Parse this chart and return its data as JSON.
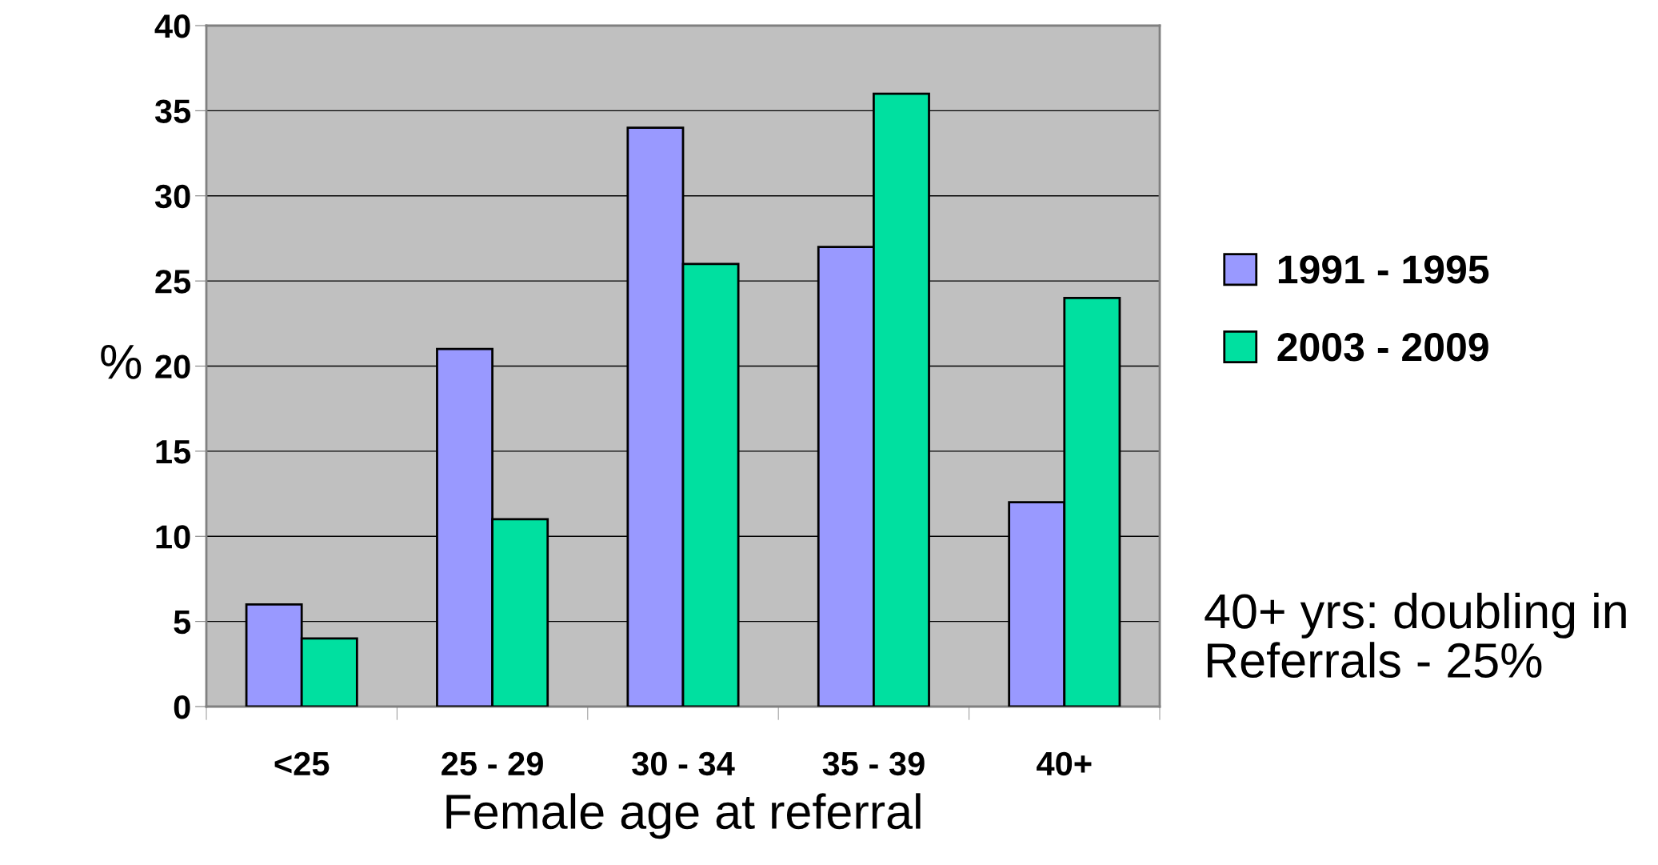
{
  "chart_data": {
    "type": "bar",
    "xlabel": "Female age at referral",
    "ylabel": "%",
    "categories": [
      "<25",
      "25 - 29",
      "30 - 34",
      "35 - 39",
      "40+"
    ],
    "series": [
      {
        "name": "1991 - 1995",
        "color": "#9999ff",
        "values": [
          6,
          21,
          34,
          27,
          12
        ]
      },
      {
        "name": "2003 - 2009",
        "color": "#00e0a0",
        "values": [
          4,
          11,
          26,
          36,
          24
        ]
      }
    ],
    "ylim": [
      0,
      40
    ],
    "yticks": [
      0,
      5,
      10,
      15,
      20,
      25,
      30,
      35,
      40
    ],
    "grid": "y",
    "legend": "right",
    "annotations": [
      "40+ yrs: doubling in\nReferrals - 25%"
    ]
  }
}
